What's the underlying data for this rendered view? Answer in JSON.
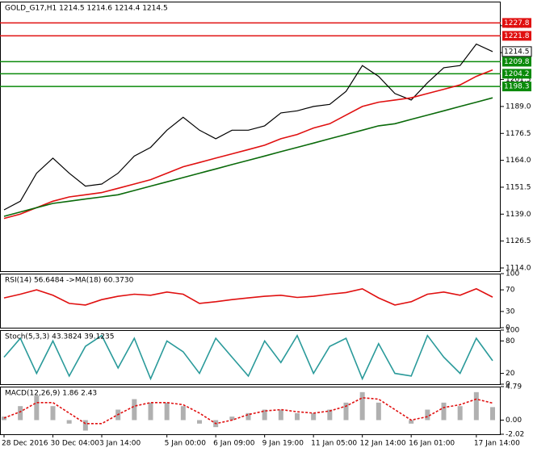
{
  "chart_data": [
    {
      "type": "line",
      "title": "GOLD_G17,H1  1214.5 1214.6 1214.4 1214.5",
      "categories": [
        "28 Dec 2016",
        null,
        null,
        "30 Dec 04:00",
        null,
        null,
        "3 Jan 14:00",
        null,
        null,
        null,
        "5 Jan 00:00",
        null,
        null,
        "6 Jan 09:00",
        null,
        null,
        "9 Jan 19:00",
        null,
        null,
        "11 Jan 05:00",
        null,
        null,
        "12 Jan 14:00",
        null,
        null,
        "16 Jan 01:00",
        null,
        null,
        null,
        "17 Jan 14:00",
        null
      ],
      "series": [
        {
          "color": "#000000",
          "values": [
            1141,
            1145,
            1158,
            1165,
            1158,
            1152,
            1153,
            1158,
            1166,
            1170,
            1178,
            1184,
            1178,
            1174,
            1178,
            1178,
            1180,
            1186,
            1187,
            1189,
            1190,
            1196,
            1208,
            1203,
            1195,
            1192,
            1200,
            1207,
            1208,
            1218,
            1214.5
          ]
        },
        {
          "color": "#e01010",
          "values": [
            1137,
            1139,
            1142,
            1145,
            1147,
            1148,
            1149,
            1151,
            1153,
            1155,
            1158,
            1161,
            1163,
            1165,
            1167,
            1169,
            1171,
            1174,
            1176,
            1179,
            1181,
            1185,
            1189,
            1191,
            1192,
            1193,
            1195,
            1197,
            1199,
            1203,
            1206
          ]
        },
        {
          "color": "#0a6a0a",
          "values": [
            1138,
            1140,
            1142,
            1144,
            1145,
            1146,
            1147,
            1148,
            1150,
            1152,
            1154,
            1156,
            1158,
            1160,
            1162,
            1164,
            1166,
            1168,
            1170,
            1172,
            1174,
            1176,
            1178,
            1180,
            1181,
            1183,
            1185,
            1187,
            1189,
            1191,
            1193
          ]
        }
      ],
      "ylim": [
        1112.5,
        1237.7
      ],
      "yticks": [
        {
          "value": 1114,
          "label": "1114.0"
        },
        1126.5,
        {
          "value": 1139,
          "label": "1139.0"
        },
        1151.5,
        {
          "value": 1164,
          "label": "1164.0"
        },
        1176.5,
        {
          "value": 1189,
          "label": "1189.0"
        },
        1201.5,
        {
          "value": 1214,
          "label": "1214.0"
        },
        1226.5
      ],
      "levels": [
        {
          "value": 1227.8,
          "color": "#e01010"
        },
        {
          "value": 1221.8,
          "color": "#e01010"
        },
        {
          "value": 1209.8,
          "color": "#0a8a0a"
        },
        {
          "value": 1204.2,
          "color": "#0a8a0a"
        },
        {
          "value": 1198.3,
          "color": "#0a8a0a"
        }
      ],
      "current_price": 1214.5
    },
    {
      "type": "line",
      "title": "RSI(14) 56.6484  ->MA(18) 60.3730",
      "series": [
        {
          "color": "#e01010",
          "values": [
            55,
            62,
            70,
            60,
            45,
            42,
            52,
            58,
            62,
            60,
            66,
            62,
            45,
            48,
            52,
            55,
            58,
            60,
            56,
            58,
            62,
            65,
            72,
            55,
            42,
            48,
            62,
            66,
            60,
            72,
            56.6
          ]
        }
      ],
      "ylim": [
        0,
        100
      ],
      "yticks": [
        100,
        70,
        30,
        0
      ]
    },
    {
      "type": "line",
      "title": "Stoch(5,3,3) 43.3824 39.1235",
      "series": [
        {
          "color": "#2a9a9a",
          "values": [
            50,
            85,
            20,
            80,
            15,
            70,
            90,
            30,
            85,
            10,
            80,
            60,
            20,
            85,
            50,
            15,
            80,
            40,
            90,
            20,
            70,
            85,
            10,
            75,
            20,
            15,
            90,
            50,
            20,
            85,
            43.4
          ]
        }
      ],
      "ylim": [
        0,
        100
      ],
      "yticks": [
        100,
        80,
        20,
        0
      ]
    },
    {
      "type": "bar",
      "title": "MACD(12,26,9) 1.86 2.43",
      "series": [
        {
          "color": "#b0b0b0",
          "values": [
            0.5,
            2,
            3.5,
            2,
            -0.5,
            -1.5,
            0,
            1.5,
            3,
            2.5,
            2.5,
            2,
            -0.5,
            -1,
            0.5,
            1,
            1.5,
            1.5,
            1,
            1,
            1.5,
            2.5,
            4,
            2.5,
            0,
            -0.5,
            1.5,
            2.5,
            2,
            4,
            1.86
          ]
        },
        {
          "color": "#e01010",
          "dashed": true,
          "values": [
            0.3,
            1.2,
            2.5,
            2.5,
            1,
            -0.5,
            -0.5,
            0.8,
            2,
            2.5,
            2.5,
            2.2,
            1,
            -0.5,
            0,
            0.8,
            1.3,
            1.5,
            1.2,
            1,
            1.3,
            2,
            3.2,
            3,
            1.5,
            0,
            0.5,
            1.8,
            2.2,
            3,
            2.43
          ]
        }
      ],
      "ylim": [
        -2.02,
        4.79
      ],
      "yticks": [
        4.79,
        {
          "value": 0,
          "label": "0.00"
        },
        -2.02
      ]
    }
  ]
}
